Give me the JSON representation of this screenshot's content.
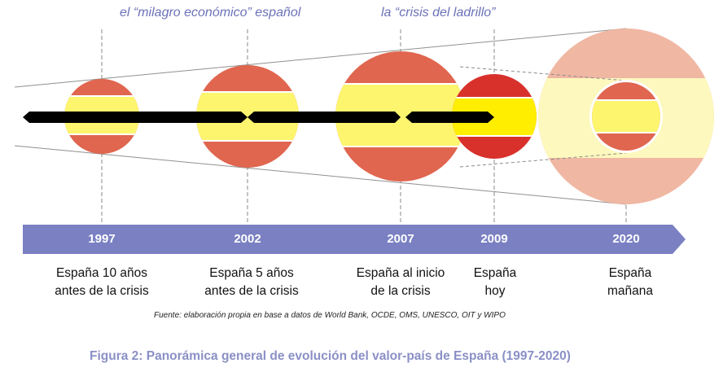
{
  "annotations": {
    "era1": "el “milagro económico” español",
    "era2": "la “crisis del ladrillo”"
  },
  "timeline": [
    {
      "year": "1997",
      "label_line1": "España 10 años",
      "label_line2": "antes de la crisis"
    },
    {
      "year": "2002",
      "label_line1": "España 5 años",
      "label_line2": "antes de la crisis"
    },
    {
      "year": "2007",
      "label_line1": "España al inicio",
      "label_line2": "de la crisis"
    },
    {
      "year": "2009",
      "label_line1": "España",
      "label_line2": "hoy"
    },
    {
      "year": "2020",
      "label_line1": "España",
      "label_line2": "mañana"
    }
  ],
  "source": "Fuente: elaboración propia en base a datos de World Bank, OCDE, OMS, UNESCO, OIT y WIPO",
  "caption": "Figura 2: Panorámica general de evolución del valor-país de España (1997-2020)",
  "colors": {
    "red": "#e0664f",
    "bright_red": "#d8312c",
    "yellow": "#fdf56e",
    "bright_yellow": "#ffee00",
    "pale_red": "#f0b7a3",
    "pale_yellow": "#fdf8bd",
    "axis_blue": "#7a80c2",
    "text_purple": "#6b72b8"
  }
}
